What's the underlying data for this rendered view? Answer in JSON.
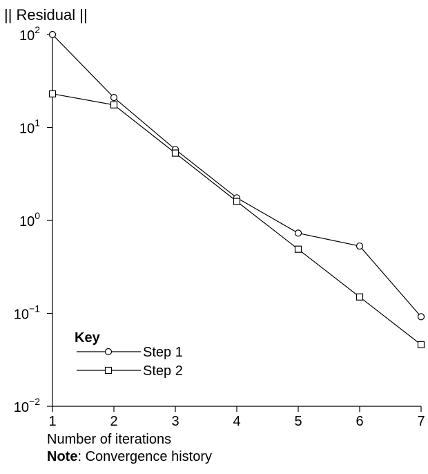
{
  "chart_data": {
    "type": "line",
    "ylabel": "|| Residual ||",
    "xlabel": "Number of iterations",
    "note_label": "Note",
    "note_text": ": Convergence history",
    "x": [
      1,
      2,
      3,
      4,
      5,
      6,
      7
    ],
    "xlim": [
      1,
      7
    ],
    "y_scale": "log",
    "ylim": [
      0.01,
      100
    ],
    "y_ticks": [
      {
        "value": 100,
        "base": "10",
        "exp": "2"
      },
      {
        "value": 10,
        "base": "10",
        "exp": "1"
      },
      {
        "value": 1,
        "base": "10",
        "exp": "0"
      },
      {
        "value": 0.1,
        "base": "10",
        "exp": "−1"
      },
      {
        "value": 0.01,
        "base": "10",
        "exp": "−2"
      }
    ],
    "x_ticks": [
      "1",
      "2",
      "3",
      "4",
      "5",
      "6",
      "7"
    ],
    "grid": false,
    "legend_title": "Key",
    "legend_position": "bottom-left",
    "series": [
      {
        "name": "Step 1",
        "marker": "circle",
        "values": [
          100,
          21,
          5.8,
          1.75,
          0.73,
          0.53,
          0.092
        ]
      },
      {
        "name": "Step 2",
        "marker": "square",
        "values": [
          23,
          17.5,
          5.3,
          1.6,
          0.49,
          0.15,
          0.046
        ]
      }
    ],
    "colors": {
      "line": "#000000",
      "background": "#ffffff"
    }
  }
}
